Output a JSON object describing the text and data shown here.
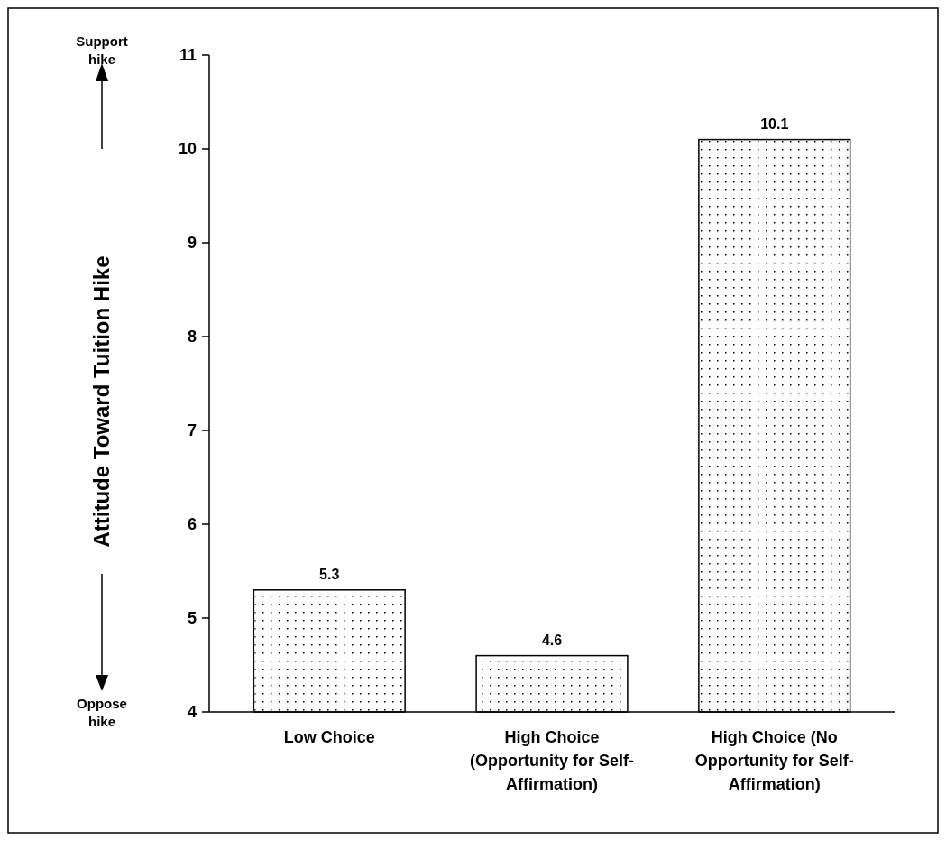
{
  "chart_data": {
    "type": "bar",
    "ylabel": "Attitude Toward Tuition Hike",
    "categories": [
      "Low Choice",
      "High Choice (Opportunity for Self-Affirmation)",
      "High Choice (No Opportunity for Self-Affirmation)"
    ],
    "values": [
      5.3,
      4.6,
      10.1
    ],
    "color": "#ffffff",
    "ylim": [
      4,
      11
    ],
    "yticks": [
      4,
      5,
      6,
      7,
      8,
      9,
      10,
      11
    ],
    "data_labels": true,
    "grid": false,
    "annotations": [
      "Support hike",
      "Oppose hike"
    ]
  }
}
